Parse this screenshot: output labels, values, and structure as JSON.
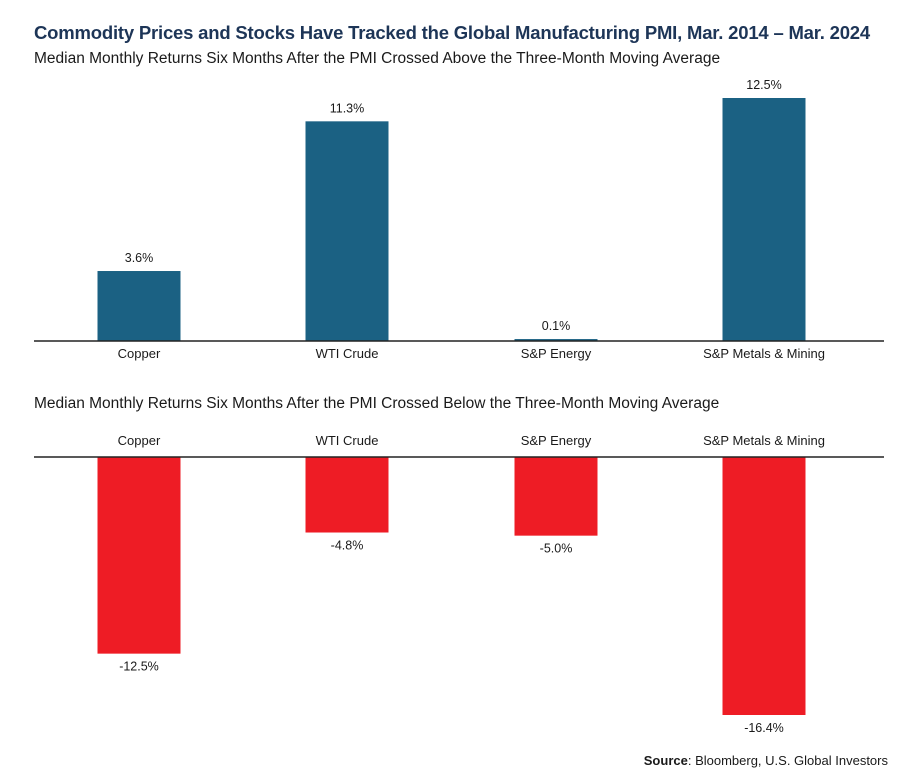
{
  "title": "Commodity Prices and Stocks Have Tracked the Global Manufacturing PMI, Mar. 2014 – Mar. 2024",
  "source": {
    "label": "Source",
    "text": ": Bloomberg, U.S. Global Investors"
  },
  "colors": {
    "positive": "#1b6183",
    "negative": "#ee1c25",
    "title": "#1d3557",
    "axis": "#222222"
  },
  "chart_data": [
    {
      "type": "bar",
      "subtitle": "Median Monthly Returns Six Months After the PMI Crossed Above the Three-Month Moving Average",
      "categories": [
        "Copper",
        "WTI Crude",
        "S&P Energy",
        "S&P Metals & Mining"
      ],
      "values": [
        3.6,
        11.3,
        0.1,
        12.5
      ],
      "value_labels": [
        "3.6%",
        "11.3%",
        "0.1%",
        "12.5%"
      ],
      "ylim": [
        0,
        12.5
      ],
      "grid": false,
      "legend": "none"
    },
    {
      "type": "bar",
      "subtitle": "Median Monthly Returns Six Months After the PMI Crossed Below the Three-Month Moving Average",
      "categories": [
        "Copper",
        "WTI Crude",
        "S&P Energy",
        "S&P Metals & Mining"
      ],
      "values": [
        -12.5,
        -4.8,
        -5.0,
        -16.4
      ],
      "value_labels": [
        "-12.5%",
        "-4.8%",
        "-5.0%",
        "-16.4%"
      ],
      "ylim": [
        -16.4,
        0
      ],
      "grid": false,
      "legend": "none"
    }
  ]
}
